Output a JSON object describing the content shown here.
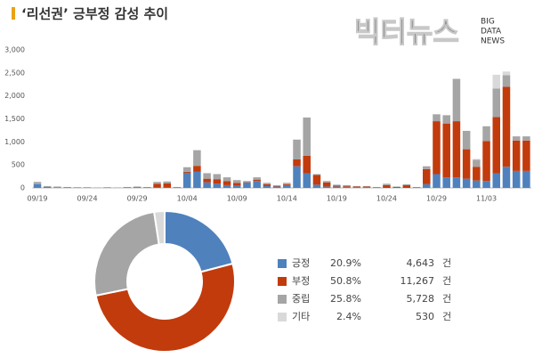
{
  "header": {
    "title": "‘리선권’ 긍부정 감성 추이",
    "logo": "빅터뉴스",
    "logo_sub": [
      "BIG",
      "DATA",
      "NEWS"
    ]
  },
  "chart_data": [
    {
      "type": "bar",
      "categories": [
        "09/19",
        null,
        null,
        null,
        null,
        "09/24",
        null,
        null,
        null,
        null,
        "09/29",
        null,
        null,
        null,
        null,
        "10/04",
        null,
        null,
        null,
        null,
        "10/09",
        null,
        null,
        null,
        null,
        "10/14",
        null,
        null,
        null,
        null,
        "10/19",
        null,
        null,
        null,
        null,
        "10/24",
        null,
        null,
        null,
        null,
        "10/29",
        null,
        null,
        null,
        null,
        "11/03",
        null,
        null,
        null,
        null
      ],
      "series": [
        {
          "color": "#4f81bd",
          "values": [
            80,
            20,
            15,
            10,
            8,
            8,
            5,
            8,
            5,
            10,
            15,
            10,
            10,
            10,
            10,
            330,
            350,
            120,
            90,
            60,
            50,
            120,
            150,
            40,
            30,
            60,
            470,
            320,
            70,
            30,
            30,
            25,
            20,
            20,
            10,
            0,
            10,
            0,
            10,
            80,
            300,
            230,
            230,
            200,
            160,
            150,
            320,
            460,
            370,
            370
          ]
        },
        {
          "color": "#c23b0c",
          "values": [
            0,
            0,
            0,
            0,
            0,
            0,
            0,
            0,
            0,
            0,
            5,
            0,
            80,
            90,
            0,
            20,
            130,
            80,
            100,
            90,
            60,
            10,
            30,
            40,
            10,
            20,
            150,
            380,
            210,
            90,
            20,
            20,
            10,
            10,
            5,
            60,
            10,
            60,
            5,
            330,
            1150,
            1170,
            1220,
            640,
            300,
            870,
            1220,
            1740,
            660,
            660
          ]
        },
        {
          "color": "#a5a5a5",
          "values": [
            50,
            20,
            15,
            10,
            7,
            7,
            5,
            7,
            5,
            10,
            10,
            10,
            40,
            40,
            10,
            100,
            340,
            120,
            110,
            80,
            60,
            20,
            50,
            30,
            20,
            30,
            430,
            830,
            20,
            30,
            20,
            15,
            10,
            10,
            5,
            30,
            10,
            20,
            5,
            60,
            150,
            180,
            920,
            400,
            150,
            320,
            620,
            250,
            90,
            90
          ]
        },
        {
          "color": "#d9d9d9",
          "values": [
            0,
            0,
            0,
            0,
            0,
            0,
            0,
            0,
            0,
            0,
            0,
            0,
            0,
            0,
            0,
            0,
            0,
            0,
            0,
            0,
            0,
            0,
            0,
            0,
            0,
            0,
            0,
            0,
            0,
            0,
            0,
            0,
            0,
            0,
            0,
            0,
            0,
            0,
            0,
            0,
            0,
            0,
            0,
            0,
            20,
            0,
            300,
            80,
            0,
            0
          ]
        }
      ],
      "ylim": [
        0,
        3000
      ],
      "yticks": [
        0,
        500,
        {
          "value": 1000,
          "label": "1,000"
        },
        {
          "value": 1500,
          "label": "1,500"
        },
        {
          "value": 2000,
          "label": "2,000"
        },
        {
          "value": 2500,
          "label": "2,500"
        },
        {
          "value": 3000,
          "label": "3,000"
        }
      ],
      "grid": false
    },
    {
      "type": "pie",
      "categories": [
        "긍정",
        "부정",
        "중립",
        "기타"
      ],
      "colors": [
        "#4f81bd",
        "#c23b0c",
        "#a5a5a5",
        "#d9d9d9"
      ],
      "values": [
        20.9,
        50.8,
        25.8,
        2.4
      ],
      "value_labels": [
        "20.9%",
        "50.8%",
        "25.8%",
        "2.4%"
      ],
      "counts": [
        4643,
        11267,
        5728,
        530
      ],
      "count_labels": [
        "4,643",
        "11,267",
        "5,728",
        "530"
      ],
      "unit": "건"
    }
  ]
}
